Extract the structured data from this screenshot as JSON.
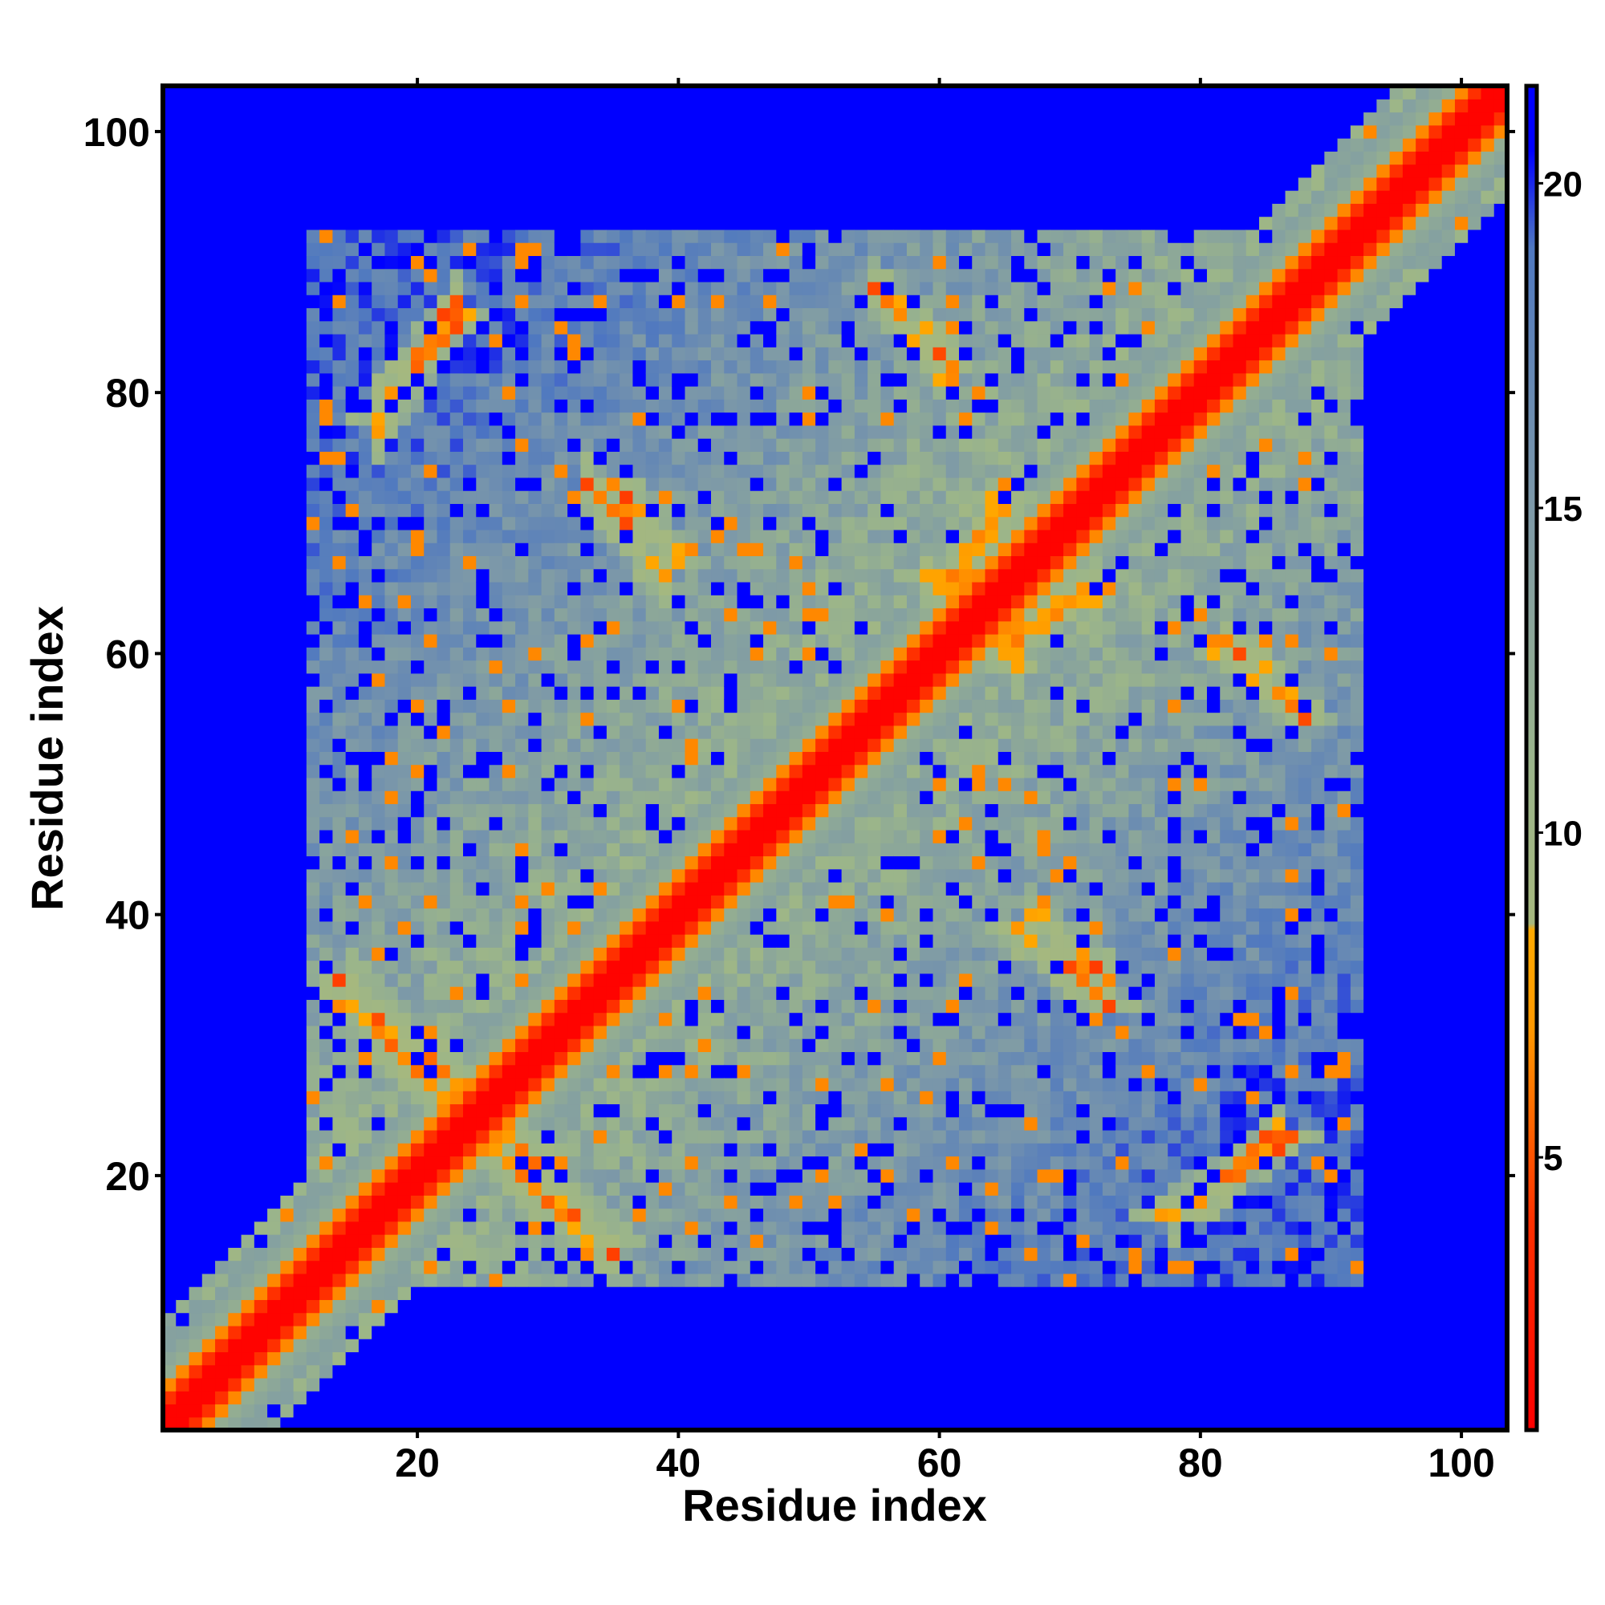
{
  "chart_data": {
    "type": "heatmap",
    "title": "",
    "xlabel": "Residue index",
    "ylabel": "Residue index",
    "n_residues": 103,
    "xlim": [
      1,
      103
    ],
    "ylim": [
      1,
      103
    ],
    "x_ticks": [
      20,
      40,
      60,
      80,
      100
    ],
    "y_ticks": [
      20,
      40,
      60,
      80,
      100
    ],
    "x_tick_labels": [
      "20",
      "40",
      "60",
      "80",
      "100"
    ],
    "y_tick_labels": [
      "20",
      "40",
      "60",
      "80",
      "100"
    ],
    "colorbar": {
      "range": [
        0.8,
        21.5
      ],
      "ticks": [
        5,
        10,
        15,
        20
      ],
      "tick_labels": [
        "5",
        "10",
        "15",
        "20"
      ],
      "stops": [
        {
          "value": 0.8,
          "color": "#ff0000"
        },
        {
          "value": 4.0,
          "color": "#ff3000"
        },
        {
          "value": 7.0,
          "color": "#ff9900"
        },
        {
          "value": 8.5,
          "color": "#ffaa00"
        },
        {
          "value": 8.6,
          "color": "#a6b87e"
        },
        {
          "value": 11.0,
          "color": "#9bb58a"
        },
        {
          "value": 15.0,
          "color": "#7d99a8"
        },
        {
          "value": 19.0,
          "color": "#4f78c0"
        },
        {
          "value": 20.5,
          "color": "#0000ff"
        },
        {
          "value": 21.5,
          "color": "#0000ff"
        }
      ]
    },
    "background_value": 21,
    "grid": false,
    "description_of_data": "Symmetric residue-residue distance map; minimum distance along the diagonal, beta-strand pairing ridges off-diagonal",
    "contact_features": [
      {
        "i": [
          15,
          24
        ],
        "j": [
          35,
          26
        ],
        "direction": "anti",
        "value": 6
      },
      {
        "i": [
          25,
          35
        ],
        "j": [
          23,
          14
        ],
        "direction": "anti",
        "value": 6
      },
      {
        "i": [
          17,
          23
        ],
        "j": [
          77,
          87
        ],
        "direction": "para",
        "value": 6
      },
      {
        "i": [
          33,
          39
        ],
        "j": [
          73,
          66
        ],
        "direction": "anti",
        "value": 6
      },
      {
        "i": [
          55,
          61
        ],
        "j": [
          88,
          81
        ],
        "direction": "anti",
        "value": 6
      },
      {
        "i": [
          67,
          73
        ],
        "j": [
          40,
          35
        ],
        "direction": "anti",
        "value": 6
      },
      {
        "i": [
          78,
          86
        ],
        "j": [
          17,
          23
        ],
        "direction": "para",
        "value": 6
      },
      {
        "i": [
          82,
          87
        ],
        "j": [
          61,
          56
        ],
        "direction": "anti",
        "value": 6
      },
      {
        "i": [
          59,
          65
        ],
        "j": [
          66,
          62
        ],
        "direction": "para",
        "value": 6
      },
      {
        "i": [
          65,
          72
        ],
        "j": [
          61,
          65
        ],
        "direction": "para",
        "value": 6
      }
    ]
  }
}
